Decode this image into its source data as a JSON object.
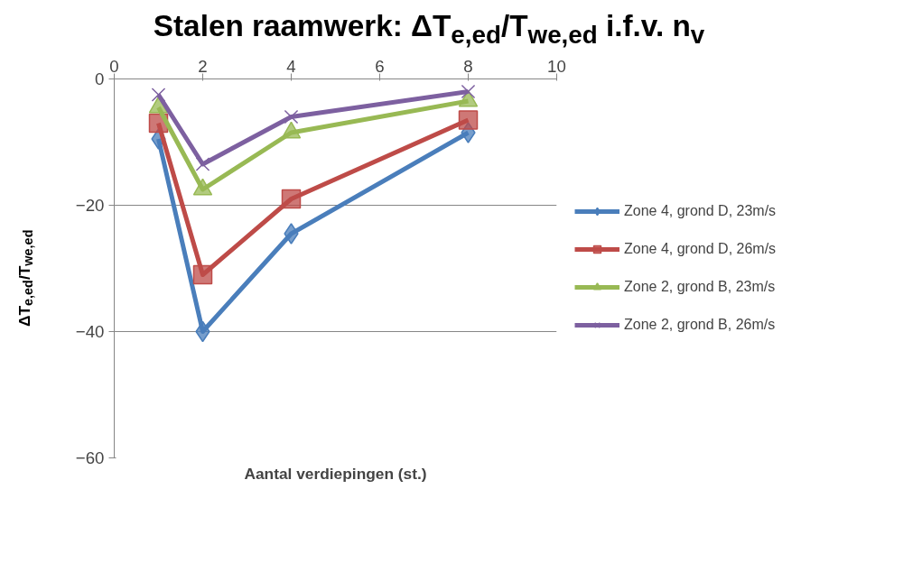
{
  "chart_data": {
    "type": "line",
    "title": "Stalen raamwerk: ΔT$_{e,ed}$/T$_{we,ed}$ i.f.v. n$_{v}$",
    "xlabel": "Aantal verdiepingen (st.)",
    "ylabel": "ΔT$_{e,ed}$/T$_{we,ed}$",
    "x": [
      1,
      2,
      4,
      8
    ],
    "series": [
      {
        "name": "Zone 4, grond D, 23m/s",
        "color": "#4a7ebb",
        "marker": "diamond",
        "values": [
          -9.5,
          -40,
          -24.5,
          -8.5
        ]
      },
      {
        "name": "Zone 4, grond D, 26m/s",
        "color": "#be4b48",
        "marker": "square",
        "values": [
          -7,
          -31,
          -19,
          -6.5
        ]
      },
      {
        "name": "Zone 2, grond B, 23m/s",
        "color": "#98b954",
        "marker": "triangle",
        "values": [
          -4.5,
          -17.5,
          -8.5,
          -3.5
        ]
      },
      {
        "name": "Zone 2, grond B, 26m/s",
        "color": "#7d60a0",
        "marker": "cross",
        "values": [
          -2.5,
          -13.5,
          -6,
          -2
        ]
      }
    ],
    "xlim": [
      0,
      10
    ],
    "xticks": [
      0,
      2,
      4,
      6,
      8,
      10
    ],
    "ylim": [
      -60,
      0
    ],
    "yticks": [
      -60,
      -40,
      -20,
      0
    ],
    "grid": "y",
    "legend": "right",
    "line_style": "solid"
  }
}
